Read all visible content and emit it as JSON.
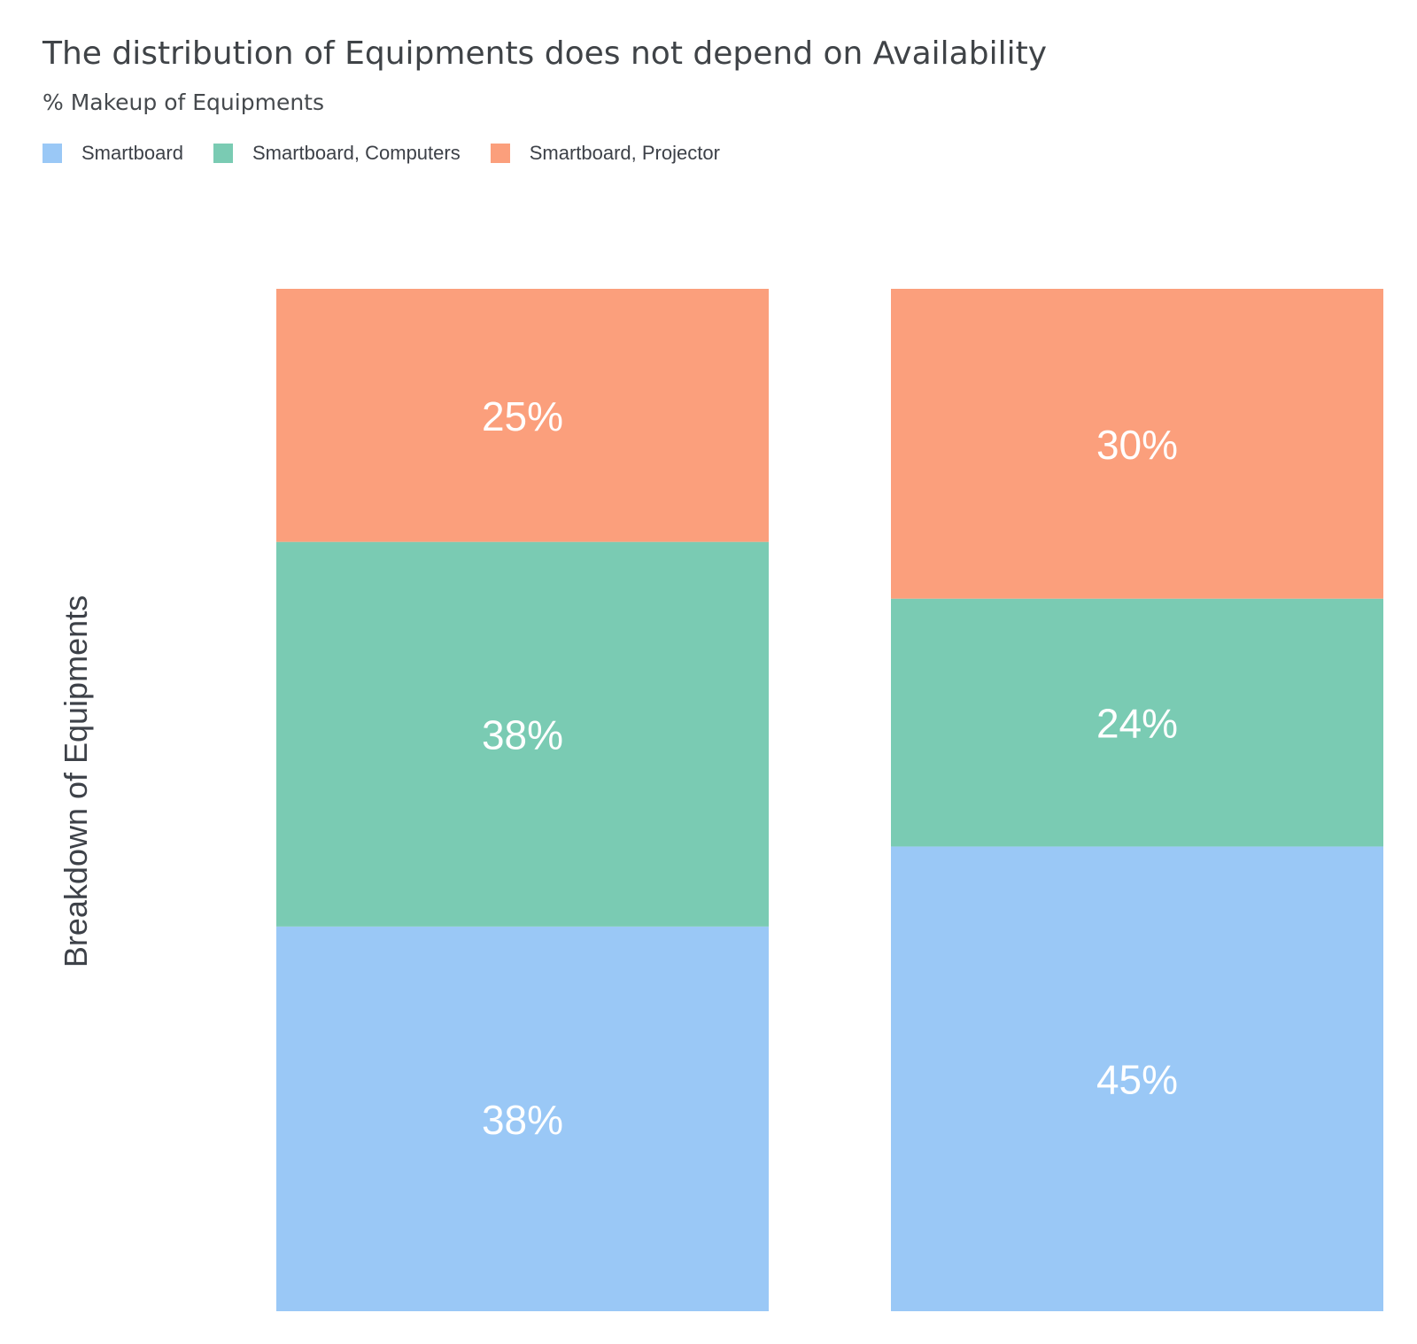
{
  "chart_data": {
    "type": "bar",
    "stacked": true,
    "normalized": true,
    "title": "The distribution of Equipments does not depend on Availability",
    "subtitle": "% Makeup of Equipments",
    "ylabel": "Breakdown of Equipments",
    "xlabel": "",
    "categories": [
      "",
      ""
    ],
    "ylim": [
      0,
      100
    ],
    "grid": false,
    "legend_position": "top-left",
    "series": [
      {
        "name": "Smartboard",
        "color": "#9ac8f6",
        "values": [
          38,
          45
        ],
        "labels": [
          "38%",
          "45%"
        ]
      },
      {
        "name": "Smartboard, Computers",
        "color": "#7acbb3",
        "values": [
          38,
          24
        ],
        "labels": [
          "38%",
          "24%"
        ]
      },
      {
        "name": "Smartboard, Projector",
        "color": "#fb9f7c",
        "values": [
          25,
          30
        ],
        "labels": [
          "25%",
          "30%"
        ]
      }
    ]
  }
}
